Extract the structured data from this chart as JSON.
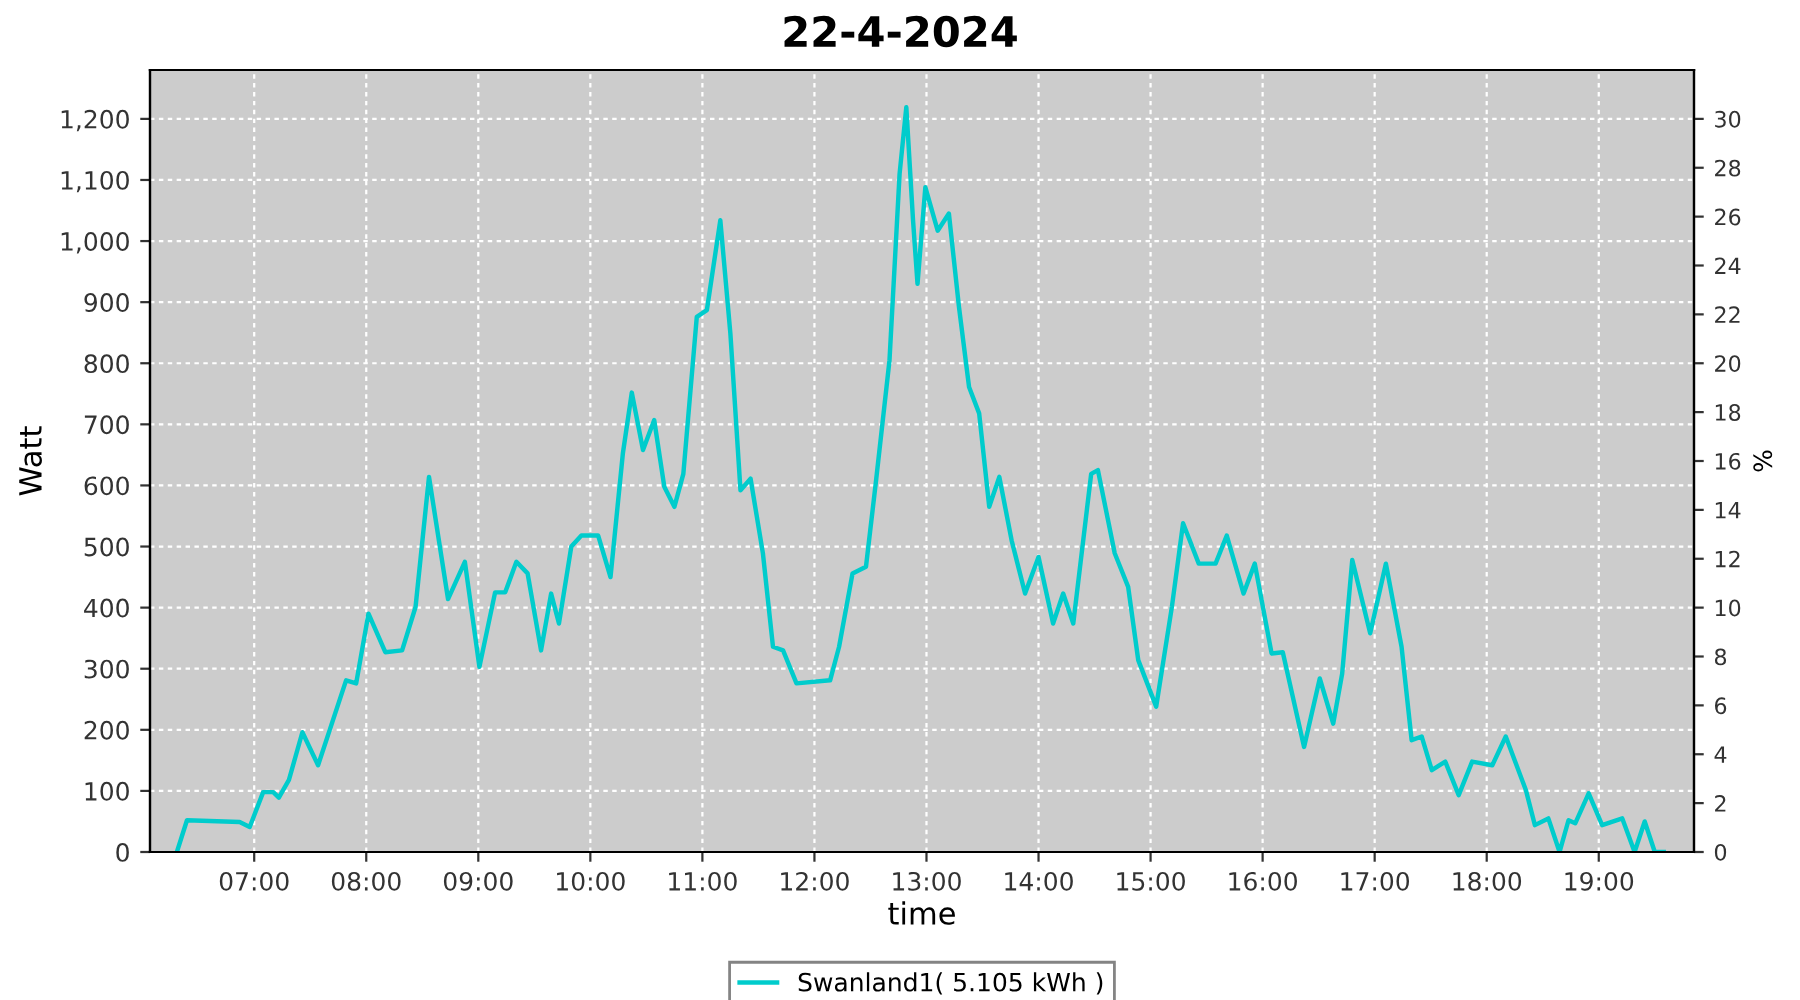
{
  "chart_data": {
    "type": "line",
    "title": "22-4-2024",
    "xlabel": "time",
    "ylabel": "Watt",
    "y2label": "%",
    "series": [
      {
        "name": "Swanland1( 5.105 kWh )",
        "color": "#00cccc",
        "x": [
          6.31,
          6.4,
          6.87,
          6.96,
          7.08,
          7.17,
          7.22,
          7.31,
          7.43,
          7.57,
          7.82,
          7.91,
          8.02,
          8.17,
          8.32,
          8.44,
          8.56,
          8.73,
          8.88,
          9.01,
          9.15,
          9.24,
          9.34,
          9.44,
          9.56,
          9.65,
          9.72,
          9.83,
          9.92,
          10.07,
          10.18,
          10.29,
          10.37,
          10.47,
          10.57,
          10.66,
          10.75,
          10.83,
          10.95,
          11.04,
          11.16,
          11.25,
          11.34,
          11.43,
          11.54,
          11.63,
          11.72,
          11.84,
          12.14,
          12.22,
          12.34,
          12.46,
          12.55,
          12.67,
          12.76,
          12.82,
          12.88,
          12.92,
          12.99,
          13.1,
          13.2,
          13.29,
          13.38,
          13.47,
          13.56,
          13.65,
          13.76,
          13.88,
          14.0,
          14.13,
          14.22,
          14.31,
          14.47,
          14.53,
          14.68,
          14.8,
          14.89,
          15.05,
          15.19,
          15.29,
          15.43,
          15.58,
          15.68,
          15.83,
          15.93,
          16.08,
          16.18,
          16.37,
          16.51,
          16.63,
          16.71,
          16.8,
          16.96,
          17.1,
          17.24,
          17.33,
          17.42,
          17.51,
          17.63,
          17.75,
          17.87,
          18.05,
          18.17,
          18.35,
          18.43,
          18.55,
          18.65,
          18.73,
          18.79,
          18.91,
          19.03,
          19.21,
          19.32,
          19.41,
          19.5,
          19.58
        ],
        "values": [
          0,
          52,
          49,
          41,
          98,
          98,
          89,
          118,
          196,
          142,
          281,
          276,
          390,
          327,
          330,
          401,
          614,
          414,
          475,
          303,
          425,
          425,
          475,
          456,
          330,
          423,
          374,
          500,
          518,
          518,
          450,
          652,
          752,
          658,
          707,
          598,
          565,
          619,
          876,
          887,
          1034,
          848,
          592,
          611,
          489,
          336,
          330,
          276,
          281,
          336,
          456,
          467,
          608,
          805,
          1110,
          1219,
          1034,
          930,
          1088,
          1017,
          1045,
          892,
          761,
          718,
          565,
          614,
          510,
          423,
          483,
          374,
          423,
          374,
          619,
          625,
          489,
          434,
          314,
          238,
          401,
          538,
          472,
          472,
          518,
          423,
          472,
          325,
          327,
          172,
          284,
          210,
          292,
          478,
          358,
          472,
          336,
          183,
          189,
          134,
          148,
          93,
          148,
          142,
          189,
          101,
          44,
          55,
          0,
          52,
          47,
          96,
          44,
          55,
          0,
          50,
          0,
          0
        ]
      }
    ],
    "xlim": [
      6.07,
      19.85
    ],
    "xticks": [
      {
        "value": 7,
        "label": "07:00"
      },
      {
        "value": 8,
        "label": "08:00"
      },
      {
        "value": 9,
        "label": "09:00"
      },
      {
        "value": 10,
        "label": "10:00"
      },
      {
        "value": 11,
        "label": "11:00"
      },
      {
        "value": 12,
        "label": "12:00"
      },
      {
        "value": 13,
        "label": "13:00"
      },
      {
        "value": 14,
        "label": "14:00"
      },
      {
        "value": 15,
        "label": "15:00"
      },
      {
        "value": 16,
        "label": "16:00"
      },
      {
        "value": 17,
        "label": "17:00"
      },
      {
        "value": 18,
        "label": "18:00"
      },
      {
        "value": 19,
        "label": "19:00"
      }
    ],
    "ylim": [
      0,
      1280
    ],
    "yticks": [
      0,
      100,
      200,
      300,
      400,
      500,
      600,
      700,
      800,
      900,
      {
        "value": 1000,
        "label": "1,000"
      },
      {
        "value": 1100,
        "label": "1,100"
      },
      {
        "value": 1200,
        "label": "1,200"
      }
    ],
    "y2lim": [
      0,
      32
    ],
    "y2ticks": [
      0,
      2,
      4,
      6,
      8,
      10,
      12,
      14,
      16,
      18,
      20,
      22,
      24,
      26,
      28,
      30
    ],
    "grid": true,
    "legend": "bottom",
    "marker": "none",
    "line_style": "solid"
  }
}
